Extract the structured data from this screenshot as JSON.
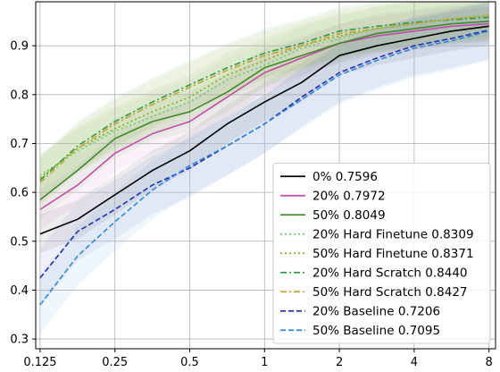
{
  "chart_data": {
    "type": "line",
    "x_scale": "log2",
    "xlim": [
      0.12,
      8.5
    ],
    "ylim": [
      0.28,
      0.99
    ],
    "grid": true,
    "legend_position": "lower-right",
    "x_ticks": [
      0.125,
      0.25,
      0.5,
      1,
      2,
      4,
      8
    ],
    "x_tick_labels": [
      "0.125",
      "0.25",
      "0.5",
      "1",
      "2",
      "4",
      "8"
    ],
    "y_ticks": [
      0.3,
      0.4,
      0.5,
      0.6,
      0.7,
      0.8,
      0.9
    ],
    "y_tick_labels": [
      "0.3",
      "0.4",
      "0.5",
      "0.6",
      "0.7",
      "0.8",
      "0.9"
    ],
    "x": [
      0.125,
      0.177,
      0.25,
      0.354,
      0.5,
      0.707,
      1,
      1.41,
      2,
      2.83,
      4,
      5.66,
      8
    ],
    "series": [
      {
        "name": "0% 0.7596",
        "color": "#000000",
        "dash": "solid",
        "y": [
          0.515,
          0.545,
          0.595,
          0.645,
          0.685,
          0.74,
          0.785,
          0.825,
          0.88,
          0.9,
          0.915,
          0.93,
          0.94
        ],
        "band": 0.04
      },
      {
        "name": "20% 0.7972",
        "color": "#c44aa8",
        "dash": "solid",
        "y": [
          0.565,
          0.615,
          0.68,
          0.72,
          0.745,
          0.795,
          0.845,
          0.875,
          0.905,
          0.92,
          0.93,
          0.94,
          0.945
        ],
        "band": 0.04
      },
      {
        "name": "50% 0.8049",
        "color": "#3f8a2a",
        "dash": "solid",
        "y": [
          0.585,
          0.645,
          0.71,
          0.745,
          0.765,
          0.805,
          0.855,
          0.88,
          0.905,
          0.925,
          0.935,
          0.945,
          0.95
        ],
        "band": 0.04
      },
      {
        "name": "20% Hard Finetune 0.8309",
        "color": "#6ec97a",
        "dash": "dot",
        "y": [
          0.635,
          0.685,
          0.725,
          0.755,
          0.785,
          0.83,
          0.86,
          0.895,
          0.915,
          0.935,
          0.945,
          0.955,
          0.96
        ],
        "band": 0.045
      },
      {
        "name": "50% Hard Finetune 0.8371",
        "color": "#8fa81c",
        "dash": "dot",
        "y": [
          0.63,
          0.69,
          0.73,
          0.765,
          0.795,
          0.84,
          0.87,
          0.9,
          0.92,
          0.935,
          0.945,
          0.955,
          0.963
        ],
        "band": 0.045
      },
      {
        "name": "20% Hard Scratch 0.8440",
        "color": "#2f9a48",
        "dash": "dashdot",
        "y": [
          0.625,
          0.695,
          0.745,
          0.785,
          0.82,
          0.855,
          0.885,
          0.905,
          0.93,
          0.94,
          0.948,
          0.953,
          0.958
        ],
        "band": 0.05
      },
      {
        "name": "50% Hard Scratch 0.8427",
        "color": "#c2a830",
        "dash": "dashdot",
        "y": [
          0.62,
          0.69,
          0.74,
          0.78,
          0.815,
          0.85,
          0.88,
          0.9,
          0.925,
          0.935,
          0.945,
          0.955,
          0.962
        ],
        "band": 0.05
      },
      {
        "name": "20% Baseline 0.7206",
        "color": "#1f2fb8",
        "dash": "dash",
        "y": [
          0.425,
          0.52,
          0.565,
          0.615,
          0.65,
          0.695,
          0.74,
          0.795,
          0.845,
          0.875,
          0.9,
          0.915,
          0.932
        ],
        "band": 0.06
      },
      {
        "name": "50% Baseline 0.7095",
        "color": "#2f8ad8",
        "dash": "dash",
        "y": [
          0.37,
          0.47,
          0.54,
          0.605,
          0.655,
          0.695,
          0.74,
          0.79,
          0.84,
          0.87,
          0.895,
          0.91,
          0.93
        ],
        "band": 0.06
      }
    ]
  }
}
